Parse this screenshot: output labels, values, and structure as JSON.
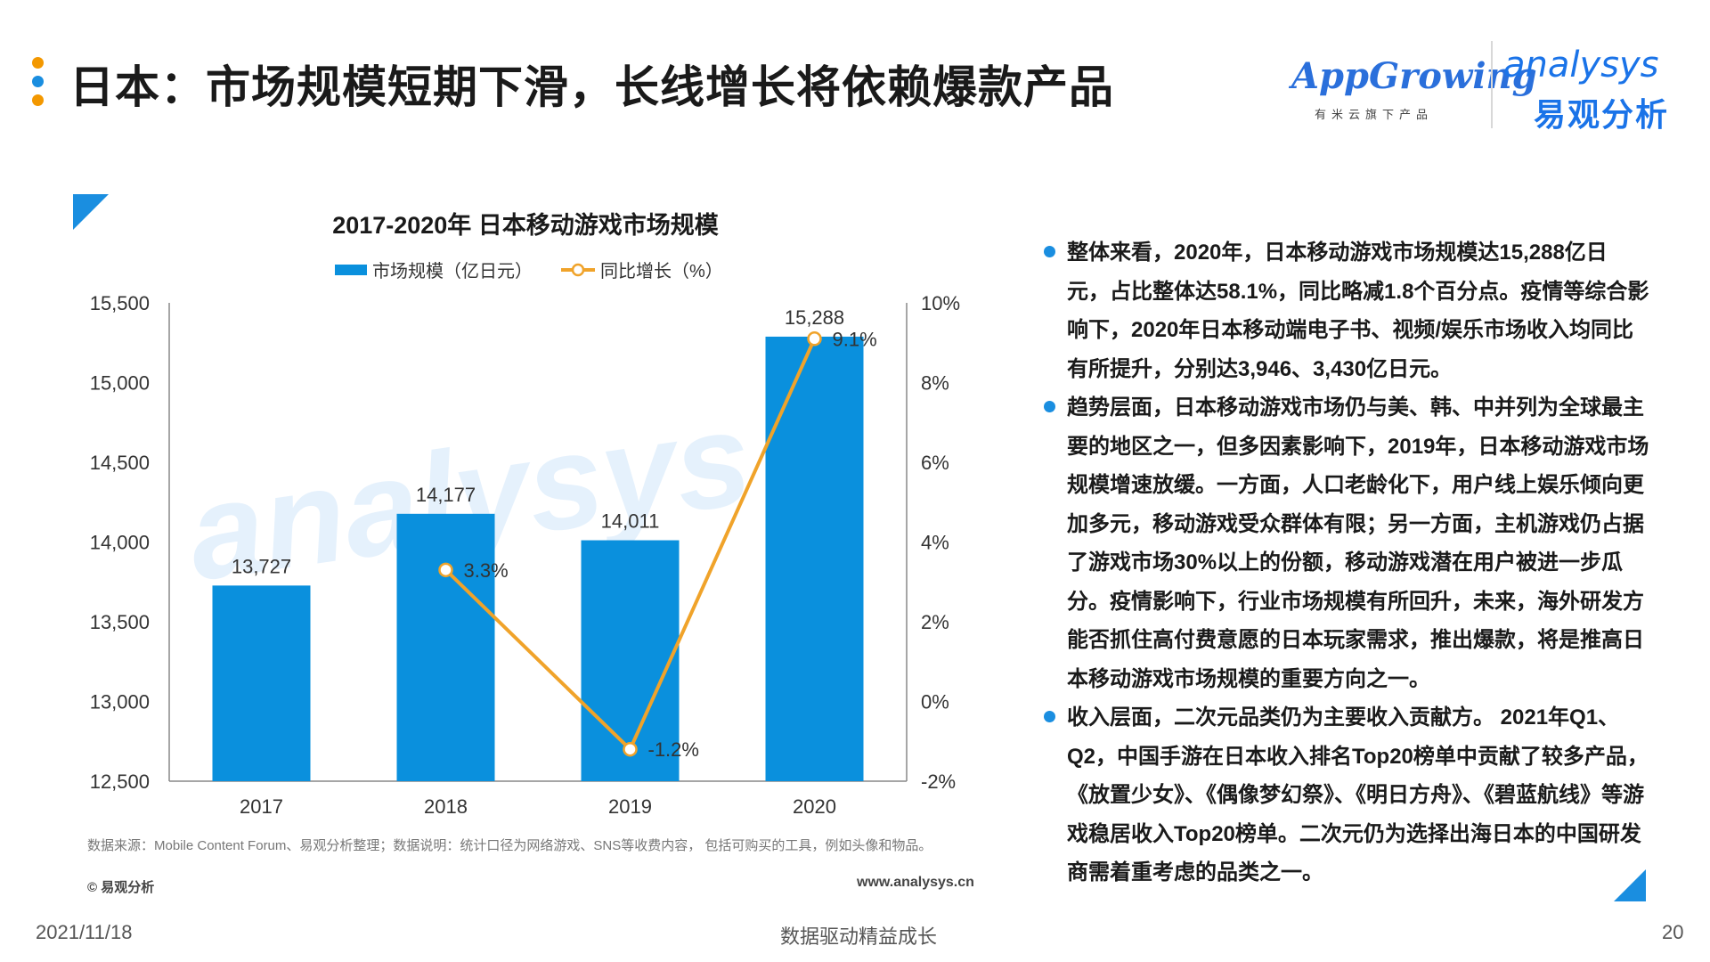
{
  "header": {
    "title": "日本：市场规模短期下滑，长线增长将依赖爆款产品",
    "dot_colors": [
      "#f39800",
      "#1a8ee0",
      "#f39800"
    ]
  },
  "logos": {
    "appgrowing": "AppGrowing",
    "appgrowing_sub": "有米云旗下产品",
    "analysys": "analysys",
    "analysys_cn": "易观分析"
  },
  "chart_data": {
    "type": "bar",
    "title": "2017-2020年 日本移动游戏市场规模",
    "categories": [
      "2017",
      "2018",
      "2019",
      "2020"
    ],
    "series": [
      {
        "name": "市场规模（亿日元）",
        "type": "bar",
        "axis": "left",
        "color": "#0a90dd",
        "values": [
          13727,
          14177,
          14011,
          15288
        ],
        "labels": [
          "13,727",
          "14,177",
          "14,011",
          "15,288"
        ]
      },
      {
        "name": "同比增长（%）",
        "type": "line",
        "axis": "right",
        "color": "#f0a32a",
        "values": [
          null,
          3.3,
          -1.2,
          9.1
        ],
        "labels": [
          "",
          "3.3%",
          "-1.2%",
          "9.1%"
        ]
      }
    ],
    "y_left": {
      "min": 12500,
      "max": 15500,
      "ticks": [
        "12,500",
        "13,000",
        "13,500",
        "14,000",
        "14,500",
        "15,000",
        "15,500"
      ],
      "tick_values": [
        12500,
        13000,
        13500,
        14000,
        14500,
        15000,
        15500
      ]
    },
    "y_right": {
      "min": -2,
      "max": 10,
      "ticks": [
        "-2%",
        "0%",
        "2%",
        "4%",
        "6%",
        "8%",
        "10%"
      ],
      "tick_values": [
        -2,
        0,
        2,
        4,
        6,
        8,
        10
      ]
    },
    "legend_position": "top-center",
    "grid": false
  },
  "watermark": "analysys 易观",
  "source_note": "数据来源：Mobile Content Forum、易观分析整理；数据说明：统计口径为网络游戏、SNS等收费内容， 包括可购买的工具，例如头像和物品。",
  "copyright": "© 易观分析",
  "website": "www.analysys.cn",
  "bullets": [
    "整体来看，2020年，日本移动游戏市场规模达15,288亿日元，占比整体达58.1%，同比略减1.8个百分点。疫情等综合影响下，2020年日本移动端电子书、视频/娱乐市场收入均同比有所提升，分别达3,946、3,430亿日元。",
    "趋势层面，日本移动游戏市场仍与美、韩、中并列为全球最主要的地区之一，但多因素影响下，2019年，日本移动游戏市场规模增速放缓。一方面，人口老龄化下，用户线上娱乐倾向更加多元，移动游戏受众群体有限；另一方面，主机游戏仍占据了游戏市场30%以上的份额，移动游戏潜在用户被进一步瓜分。疫情影响下，行业市场规模有所回升，未来，海外研发方能否抓住高付费意愿的日本玩家需求，推出爆款，将是推高日本移动游戏市场规模的重要方向之一。",
    "收入层面，二次元品类仍为主要收入贡献方。 2021年Q1、Q2，中国手游在日本收入排名Top20榜单中贡献了较多产品，《放置少女》、《偶像梦幻祭》、《明日方舟》、《碧蓝航线》等游戏稳居收入Top20榜单。二次元仍为选择出海日本的中国研发商需着重考虑的品类之一。"
  ],
  "footer": {
    "date": "2021/11/18",
    "center": "数据驱动精益成长",
    "page": "20"
  }
}
